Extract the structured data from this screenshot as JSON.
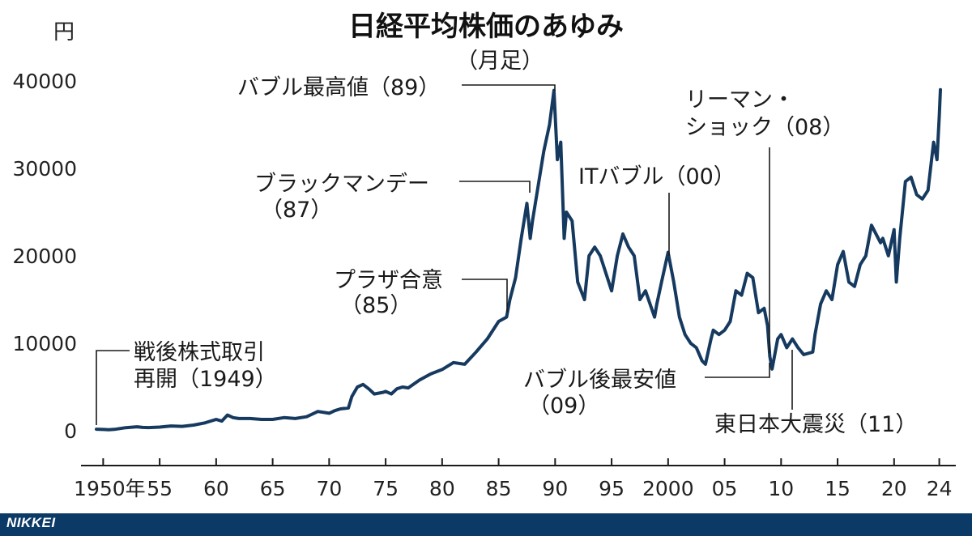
{
  "footer": {
    "brand": "NIKKEI",
    "bg_color": "#0b3a66"
  },
  "chart_data": {
    "type": "line",
    "title": "日経平均株価のあゆみ",
    "ylabel": "円",
    "ylim": [
      0,
      40000
    ],
    "yticks": [
      0,
      10000,
      20000,
      30000,
      40000
    ],
    "xlim": [
      1947,
      2025
    ],
    "xticks": [
      {
        "value": 1950,
        "label": "1950年"
      },
      {
        "value": 1955,
        "label": "55"
      },
      {
        "value": 1960,
        "label": "60"
      },
      {
        "value": 1965,
        "label": "65"
      },
      {
        "value": 1970,
        "label": "70"
      },
      {
        "value": 1975,
        "label": "75"
      },
      {
        "value": 1980,
        "label": "80"
      },
      {
        "value": 1985,
        "label": "85"
      },
      {
        "value": 1990,
        "label": "90"
      },
      {
        "value": 1995,
        "label": "95"
      },
      {
        "value": 2000,
        "label": "2000"
      },
      {
        "value": 2005,
        "label": "05"
      },
      {
        "value": 2010,
        "label": "10"
      },
      {
        "value": 2015,
        "label": "15"
      },
      {
        "value": 2020,
        "label": "20"
      },
      {
        "value": 2024,
        "label": "24"
      }
    ],
    "line_color": "#163a5f",
    "grid": false,
    "series": [
      {
        "name": "",
        "x": [
          1949.4,
          1950.0,
          1950.5,
          1951.0,
          1952.0,
          1953.0,
          1953.5,
          1954.0,
          1955.0,
          1956.0,
          1957.0,
          1958.0,
          1959.0,
          1960.0,
          1960.5,
          1961.0,
          1961.5,
          1962.0,
          1963.0,
          1964.0,
          1965.0,
          1966.0,
          1967.0,
          1968.0,
          1969.0,
          1970.0,
          1970.5,
          1971.0,
          1971.7,
          1972.0,
          1972.5,
          1973.0,
          1973.5,
          1974.0,
          1974.8,
          1975.0,
          1975.5,
          1976.0,
          1976.5,
          1977.0,
          1978.0,
          1979.0,
          1980.0,
          1981.0,
          1982.0,
          1983.0,
          1984.0,
          1985.0,
          1985.7,
          1986.0,
          1986.5,
          1987.0,
          1987.5,
          1987.8,
          1988.0,
          1988.5,
          1989.0,
          1989.5,
          1989.9,
          1990.2,
          1990.5,
          1990.8,
          1991.0,
          1991.5,
          1992.0,
          1992.6,
          1993.0,
          1993.5,
          1994.0,
          1995.0,
          1995.5,
          1996.0,
          1996.5,
          1997.0,
          1997.5,
          1998.0,
          1998.8,
          1999.0,
          1999.5,
          2000.0,
          2000.5,
          2001.0,
          2001.5,
          2002.0,
          2002.5,
          2003.0,
          2003.3,
          2003.8,
          2004.0,
          2004.5,
          2005.0,
          2005.5,
          2006.0,
          2006.5,
          2007.0,
          2007.5,
          2008.0,
          2008.5,
          2008.8,
          2009.0,
          2009.2,
          2009.7,
          2010.0,
          2010.5,
          2011.0,
          2011.5,
          2012.0,
          2012.8,
          2013.0,
          2013.5,
          2014.0,
          2014.5,
          2015.0,
          2015.5,
          2016.0,
          2016.5,
          2017.0,
          2017.5,
          2018.0,
          2018.8,
          2019.0,
          2019.5,
          2020.0,
          2020.2,
          2020.5,
          2021.0,
          2021.5,
          2022.0,
          2022.5,
          2023.0,
          2023.5,
          2023.8,
          2024.0,
          2024.1
        ],
        "values": [
          176,
          150,
          120,
          160,
          350,
          450,
          380,
          360,
          420,
          550,
          500,
          650,
          900,
          1300,
          1100,
          1800,
          1500,
          1400,
          1400,
          1300,
          1300,
          1500,
          1400,
          1600,
          2200,
          2000,
          2300,
          2500,
          2600,
          3900,
          5000,
          5300,
          4800,
          4200,
          4400,
          4500,
          4200,
          4800,
          5000,
          4900,
          5800,
          6500,
          7000,
          7800,
          7600,
          9000,
          10500,
          12500,
          13000,
          15000,
          17500,
          22000,
          26000,
          22000,
          24000,
          28000,
          32000,
          35000,
          38915,
          31000,
          33000,
          22000,
          25000,
          24000,
          17000,
          15000,
          20000,
          21000,
          20000,
          16000,
          20000,
          22500,
          21000,
          20000,
          15000,
          16000,
          13000,
          14500,
          17500,
          20400,
          17000,
          13000,
          11000,
          10000,
          9500,
          8000,
          7600,
          10500,
          11500,
          11000,
          11500,
          12500,
          16000,
          15500,
          18000,
          17500,
          13500,
          14000,
          12000,
          8500,
          7055,
          10500,
          11000,
          9500,
          10500,
          9500,
          8700,
          9000,
          11000,
          14500,
          16000,
          15000,
          19000,
          20500,
          17000,
          16500,
          19000,
          20000,
          23500,
          21500,
          22000,
          20000,
          23000,
          17000,
          22000,
          28500,
          29000,
          27000,
          26500,
          27500,
          33000,
          31000,
          36000,
          39000
        ]
      }
    ],
    "annotations": [
      {
        "text": "日経平均株価のあゆみ",
        "id": "title"
      },
      {
        "lines": [
          "（月足）"
        ],
        "id": "monthly"
      },
      {
        "lines": [
          "バブル最高値（89）"
        ],
        "x": 1989.9,
        "id": "bubble-peak"
      },
      {
        "lines": [
          "ブラックマンデー",
          "（87）"
        ],
        "x": 1987.8,
        "id": "black-monday"
      },
      {
        "lines": [
          "プラザ合意",
          "（85）"
        ],
        "x": 1985.7,
        "id": "plaza"
      },
      {
        "lines": [
          "戦後株式取引",
          "再開（1949）"
        ],
        "x": 1949.4,
        "id": "postwar"
      },
      {
        "lines": [
          "ITバブル（00）"
        ],
        "x": 2000.0,
        "id": "it-bubble"
      },
      {
        "lines": [
          "リーマン・",
          "ショック（08）"
        ],
        "x": 2008.8,
        "id": "lehman"
      },
      {
        "lines": [
          "バブル後最安値",
          "（09）"
        ],
        "x": 2009.2,
        "id": "post-bubble-low"
      },
      {
        "lines": [
          "東日本大震災（11）"
        ],
        "x": 2011.2,
        "id": "quake"
      }
    ]
  }
}
